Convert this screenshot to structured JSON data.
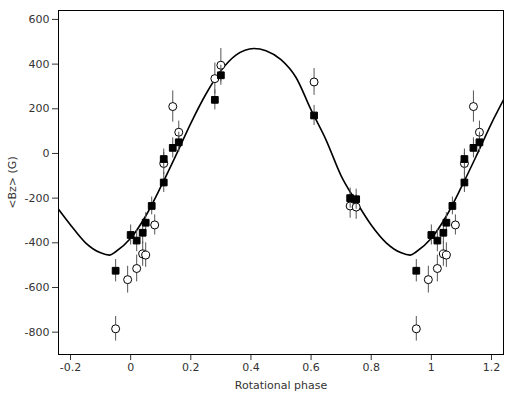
{
  "chart_data": {
    "type": "scatter",
    "x_label": "Rotational phase",
    "y_label": "<Bz> (G)",
    "xlim": [
      -0.24,
      1.24
    ],
    "ylim": [
      -900,
      640
    ],
    "xticks": [
      -0.2,
      0,
      0.2,
      0.4,
      0.6,
      0.8,
      1,
      1.2
    ],
    "yticks": [
      -800,
      -600,
      -400,
      -200,
      0,
      200,
      400,
      600
    ],
    "grid": false,
    "series": [
      {
        "type": "line",
        "color": "#000000",
        "line_style": "solid",
        "x": [
          -0.24,
          -0.2,
          -0.15,
          -0.1,
          -0.07,
          -0.05,
          0,
          0.05,
          0.1,
          0.15,
          0.2,
          0.25,
          0.3,
          0.35,
          0.41,
          0.45,
          0.5,
          0.55,
          0.6,
          0.65,
          0.7,
          0.75,
          0.8,
          0.85,
          0.9,
          0.93,
          0.95,
          1,
          1.05,
          1.1,
          1.15,
          1.2,
          1.24
        ],
        "values": [
          -250,
          -320,
          -400,
          -445,
          -455,
          -440,
          -380,
          -280,
          -150,
          -10,
          135,
          265,
          370,
          440,
          470,
          460,
          420,
          340,
          195,
          60,
          -100,
          -215,
          -320,
          -400,
          -445,
          -455,
          -440,
          -380,
          -280,
          -150,
          -10,
          135,
          240
        ]
      },
      {
        "type": "scatter",
        "marker": "circle",
        "color": "#000000",
        "x": [
          -0.05,
          -0.01,
          0.02,
          0.04,
          0.05,
          0.08,
          0.11,
          0.14,
          0.16,
          0.28,
          0.3,
          0.61,
          0.73,
          0.75,
          0.95,
          0.99,
          1.02,
          1.04,
          1.05,
          1.08,
          1.11,
          1.14,
          1.16
        ],
        "values": [
          -785,
          -565,
          -515,
          -450,
          -455,
          -320,
          -45,
          210,
          95,
          335,
          395,
          320,
          -235,
          -240,
          -785,
          -565,
          -515,
          -450,
          -455,
          -320,
          -45,
          210,
          95
        ],
        "errors": [
          55,
          60,
          60,
          55,
          55,
          45,
          50,
          70,
          50,
          70,
          75,
          60,
          55,
          55,
          55,
          60,
          60,
          55,
          55,
          45,
          50,
          70,
          50
        ]
      },
      {
        "type": "scatter",
        "marker": "square",
        "color": "#000000",
        "x": [
          -0.05,
          0,
          0.02,
          0.04,
          0.05,
          0.07,
          0.11,
          0.11,
          0.14,
          0.16,
          0.28,
          0.3,
          0.61,
          0.73,
          0.75,
          0.95,
          1,
          1.02,
          1.04,
          1.05,
          1.07,
          1.11,
          1.11,
          1.14,
          1.16
        ],
        "values": [
          -525,
          -365,
          -390,
          -355,
          -310,
          -235,
          -130,
          -25,
          25,
          50,
          240,
          350,
          170,
          -200,
          -205,
          -525,
          -365,
          -390,
          -355,
          -310,
          -235,
          -130,
          -25,
          25,
          50
        ],
        "errors": [
          50,
          45,
          50,
          50,
          45,
          40,
          45,
          45,
          45,
          45,
          45,
          45,
          45,
          45,
          45,
          50,
          45,
          50,
          50,
          45,
          40,
          45,
          45,
          45,
          45
        ]
      }
    ]
  }
}
